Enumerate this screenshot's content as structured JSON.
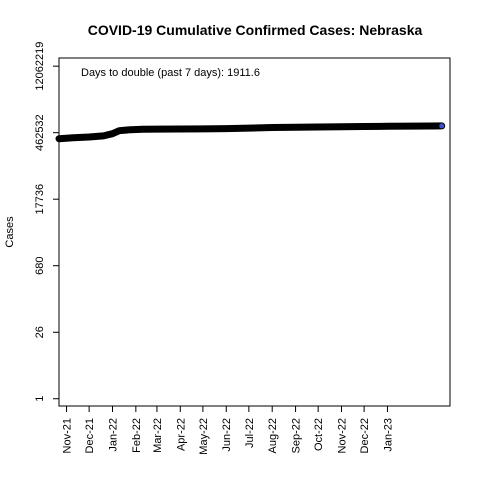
{
  "chart_data": {
    "type": "line",
    "title": "COVID-19 Cumulative Confirmed Cases: Nebraska",
    "xlabel": "",
    "ylabel": "Cases",
    "y_scale": "log",
    "ylim": [
      0.7,
      18000000
    ],
    "y_ticks": [
      1,
      26,
      680,
      17736,
      462532,
      12062219
    ],
    "y_tick_labels": [
      "1",
      "26",
      "680",
      "17736",
      "462532",
      "12062219"
    ],
    "x_range": [
      "2021-10-22",
      "2023-03-25"
    ],
    "x_ticks": [
      "2021-11-01",
      "2021-12-01",
      "2022-01-01",
      "2022-02-01",
      "2022-03-01",
      "2022-04-01",
      "2022-05-01",
      "2022-06-01",
      "2022-07-01",
      "2022-08-01",
      "2022-09-01",
      "2022-10-01",
      "2022-11-01",
      "2022-12-01",
      "2023-01-01"
    ],
    "x_tick_labels": [
      "Nov-21",
      "Dec-21",
      "Jan-22",
      "Feb-22",
      "Mar-22",
      "Apr-22",
      "May-22",
      "Jun-22",
      "Jul-22",
      "Aug-22",
      "Sep-22",
      "Oct-22",
      "Nov-22",
      "Dec-22",
      "Jan-23"
    ],
    "annotation": "Days to double (past 7 days): 1911.6",
    "grid": false,
    "series": [
      {
        "color": "#000000",
        "end_marker_color": "#3b4fc4",
        "points": [
          [
            "2021-10-22",
            345000
          ],
          [
            "2021-11-10",
            360000
          ],
          [
            "2021-12-01",
            375000
          ],
          [
            "2021-12-20",
            395000
          ],
          [
            "2022-01-01",
            440000
          ],
          [
            "2022-01-10",
            510000
          ],
          [
            "2022-01-25",
            535000
          ],
          [
            "2022-02-10",
            545000
          ],
          [
            "2022-03-01",
            550000
          ],
          [
            "2022-04-01",
            553000
          ],
          [
            "2022-05-01",
            556000
          ],
          [
            "2022-06-01",
            565000
          ],
          [
            "2022-07-01",
            580000
          ],
          [
            "2022-08-01",
            595000
          ],
          [
            "2022-09-01",
            605000
          ],
          [
            "2022-10-01",
            612000
          ],
          [
            "2022-11-01",
            618000
          ],
          [
            "2022-12-01",
            625000
          ],
          [
            "2023-01-01",
            632000
          ],
          [
            "2023-02-01",
            638000
          ],
          [
            "2023-03-01",
            642000
          ],
          [
            "2023-03-14",
            644000
          ]
        ]
      }
    ]
  }
}
